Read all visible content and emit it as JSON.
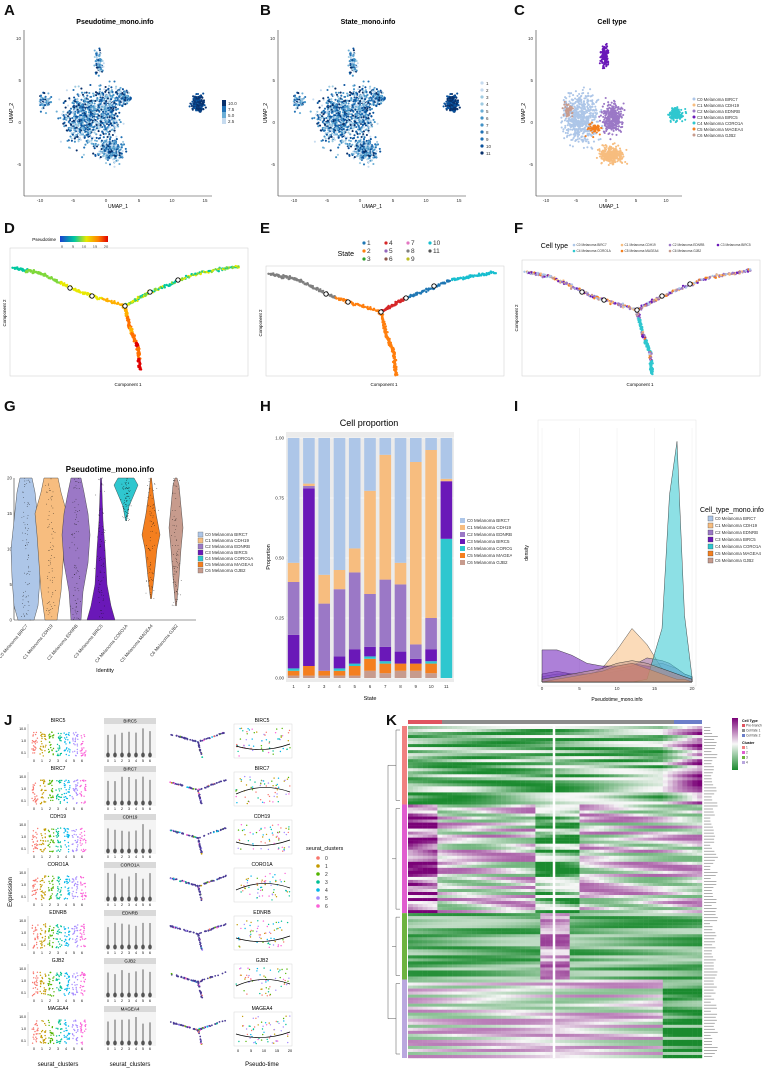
{
  "figure": {
    "panel_letters": [
      "A",
      "B",
      "C",
      "D",
      "E",
      "F",
      "G",
      "H",
      "I",
      "J",
      "K"
    ],
    "panels": {
      "A": {
        "title": "Pseudotime_mono.info",
        "xlabel": "UMAP_1",
        "ylabel": "UMAP_2",
        "xticks": [
          "-10",
          "-5",
          "0",
          "5",
          "10",
          "15"
        ],
        "yticks": [
          "10",
          "5",
          "0",
          "-5"
        ],
        "legend": [
          "10.0",
          "7.5",
          "5.0",
          "2.5"
        ]
      },
      "B": {
        "title": "State_mono.info",
        "xlabel": "UMAP_1",
        "ylabel": "UMAP_2",
        "xticks": [
          "-10",
          "-5",
          "0",
          "5",
          "10",
          "15"
        ],
        "yticks": [
          "10",
          "5",
          "0",
          "-5"
        ],
        "legend": [
          "1",
          "2",
          "3",
          "4",
          "5",
          "6",
          "7",
          "8",
          "9",
          "10",
          "11"
        ]
      },
      "C": {
        "title": "Cell type",
        "xlabel": "UMAP_1",
        "ylabel": "UMAP_2",
        "xticks": [
          "-10",
          "-5",
          "0",
          "5",
          "10"
        ],
        "yticks": [
          "10",
          "5",
          "0",
          "-5"
        ],
        "legend": [
          "C0 Melanoma BIRC7",
          "C1 Melanoma CDH19",
          "C2 Melanoma EDNRB",
          "C3 Melanoma BIRC5",
          "C4 Melanoma CORO1A",
          "C5 Melanoma MAGEA4",
          "C6 Melanoma GJB2"
        ]
      },
      "D": {
        "legend_title": "Pseudotime",
        "legend_ticks": [
          "0",
          "5",
          "10",
          "15",
          "20"
        ],
        "xlabel": "Component 1",
        "ylabel": "Component 2"
      },
      "E": {
        "legend_title": "State",
        "legend": [
          "1",
          "2",
          "3",
          "4",
          "5",
          "6",
          "7",
          "8",
          "9",
          "10",
          "11"
        ],
        "xlabel": "Component 1",
        "ylabel": "Component 2"
      },
      "F": {
        "legend_title": "Cell type",
        "legend": [
          "C0 Melanoma BIRC7",
          "C1 Melanoma CDH19",
          "C2 Melanoma EDNRB",
          "C3 Melanoma BIRC5",
          "C4 Melanoma CORO1A",
          "C5 Melanoma MAGEA4",
          "C6 Melanoma GJB2"
        ],
        "xlabel": "Component 1",
        "ylabel": "Component 2"
      },
      "G": {
        "title": "Pseudotime_mono.info",
        "xlabel": "Identity",
        "yticks": [
          "0",
          "5",
          "10",
          "15",
          "20"
        ],
        "legend": [
          "C0 Melanoma BIRC7",
          "C1 Melanoma CDH19",
          "C2 Melanoma EDNRB",
          "C3 Melanoma BIRC5",
          "C4 Melanoma CORO1A",
          "C5 Melanoma MAGEA4",
          "C6 Melanoma GJB2"
        ]
      },
      "H": {
        "title": "Cell proportion",
        "xlabel": "State",
        "ylabel": "Proportion",
        "yticks": [
          "0.00",
          "0.25",
          "0.50",
          "0.75",
          "1.00"
        ],
        "legend": [
          "C0 Melanoma BIRC7",
          "C1 Melanoma CDH19",
          "C2 Melanoma EDNRB",
          "C3 Melanoma BIRC5",
          "C4 Melanoma CORO1A",
          "C5 Melanoma MAGEA4",
          "C6 Melanoma GJB2"
        ]
      },
      "I": {
        "xlabel": "Pseudotime_mono.info",
        "ylabel": "density",
        "legend_title": "Cell_type_mono.info",
        "xticks": [
          "0",
          "5",
          "10",
          "15",
          "20"
        ],
        "legend": [
          "C0 Melanoma BIRC7",
          "C1 Melanoma CDH19",
          "C2 Melanoma EDNRB",
          "C3 Melanoma BIRC5",
          "C4 Melanoma CORO1A",
          "C5 Melanoma MAGEA4",
          "C6 Melanoma GJB2"
        ]
      },
      "J": {
        "genes": [
          "BIRC5",
          "BIRC7",
          "CDH19",
          "CORO1A",
          "EDNRB",
          "GJB2",
          "MAGEA4"
        ],
        "ylabel": "Expression",
        "xlabel_1": "seurat_clusters",
        "xlabel_2": "seurat_clusters",
        "xlabel_4": "Pseudo-time",
        "legend_title": "seurat_clusters",
        "legend": [
          "0",
          "1",
          "2",
          "3",
          "4",
          "5",
          "6"
        ],
        "xticks_clusters": [
          "0",
          "1",
          "2",
          "3",
          "4",
          "5",
          "6"
        ],
        "xticks_time": [
          "0",
          "5",
          "10",
          "15",
          "20"
        ],
        "yticks": [
          "10.0",
          "1.0",
          "0.1"
        ]
      },
      "K": {
        "legend_title": "Cell Type",
        "legend": [
          "Pre-branch",
          "Cell fate 1",
          "Cell fate 2"
        ],
        "cluster_title": "Cluster",
        "clusters": [
          "1",
          "2",
          "3",
          "4"
        ]
      }
    },
    "colors": {
      "celltype": [
        "#adc6e8",
        "#f7bd7f",
        "#9b78c6",
        "#6a18b8",
        "#2fc7cf",
        "#f47f1f",
        "#c79b8d"
      ],
      "celltype_dark": [
        "#6f91c4",
        "#d9914a",
        "#6d4ba0",
        "#4a0a8a",
        "#1aa0a8",
        "#c05d0c",
        "#9c6f62"
      ],
      "state": [
        "#1f77b4",
        "#ff7f0e",
        "#2ca02c",
        "#d62728",
        "#9467bd",
        "#8c564b",
        "#e377c2",
        "#7f7f7f",
        "#bcbd22",
        "#17becf",
        "#555555"
      ],
      "clusters": [
        "#f8766d",
        "#c49a00",
        "#53b400",
        "#00c094",
        "#00b6eb",
        "#a58aff",
        "#fb61d7"
      ],
      "K_clusters": [
        "#f08080",
        "#e05ccf",
        "#6db33f",
        "#b9a7de"
      ],
      "K_branch": [
        "#e05460",
        "#8c8c8c",
        "#6b7ec9"
      ]
    },
    "chart_data": [
      {
        "panel": "H",
        "type": "bar",
        "title": "Cell proportion",
        "xlabel": "State",
        "ylabel": "Proportion",
        "ylim": [
          0,
          1
        ],
        "categories": [
          "1",
          "2",
          "3",
          "4",
          "5",
          "6",
          "7",
          "8",
          "9",
          "10",
          "11"
        ],
        "series": [
          {
            "name": "C6 Melanoma GJB2",
            "values": [
              0.01,
              0.01,
              0.01,
              0.01,
              0.01,
              0.03,
              0.02,
              0.03,
              0.03,
              0.02,
              0.0
            ]
          },
          {
            "name": "C5 Melanoma MAGEA4",
            "values": [
              0.02,
              0.04,
              0.02,
              0.02,
              0.04,
              0.05,
              0.04,
              0.03,
              0.03,
              0.04,
              0.0
            ]
          },
          {
            "name": "C4 Melanoma CORO1A",
            "values": [
              0.01,
              0.0,
              0.0,
              0.01,
              0.01,
              0.01,
              0.01,
              0.0,
              0.0,
              0.01,
              0.58
            ]
          },
          {
            "name": "C3 Melanoma BIRC5",
            "values": [
              0.14,
              0.74,
              0.0,
              0.05,
              0.06,
              0.04,
              0.06,
              0.05,
              0.02,
              0.05,
              0.24
            ]
          },
          {
            "name": "C2 Melanoma EDNRB",
            "values": [
              0.22,
              0.01,
              0.28,
              0.28,
              0.32,
              0.22,
              0.28,
              0.28,
              0.06,
              0.13,
              0.0
            ]
          },
          {
            "name": "C1 Melanoma CDH19",
            "values": [
              0.08,
              0.01,
              0.12,
              0.08,
              0.1,
              0.43,
              0.52,
              0.09,
              0.76,
              0.7,
              0.01
            ]
          },
          {
            "name": "C0 Melanoma BIRC7",
            "values": [
              0.52,
              0.19,
              0.57,
              0.55,
              0.46,
              0.22,
              0.07,
              0.52,
              0.1,
              0.05,
              0.17
            ]
          }
        ]
      },
      {
        "panel": "I",
        "type": "area",
        "xlabel": "Pseudotime_mono.info",
        "ylabel": "density",
        "xlim": [
          0,
          20
        ],
        "x": [
          0,
          2,
          4,
          6,
          8,
          10,
          12,
          14,
          16,
          17,
          18,
          19,
          20
        ],
        "series": [
          {
            "name": "C0 Melanoma BIRC7",
            "values": [
              0.02,
              0.03,
              0.03,
              0.03,
              0.03,
              0.04,
              0.05,
              0.06,
              0.07,
              0.06,
              0.05,
              0.03,
              0.02
            ]
          },
          {
            "name": "C1 Melanoma CDH19",
            "values": [
              0.0,
              0.0,
              0.01,
              0.02,
              0.05,
              0.12,
              0.2,
              0.14,
              0.05,
              0.03,
              0.02,
              0.01,
              0.0
            ]
          },
          {
            "name": "C2 Melanoma EDNRB",
            "values": [
              0.03,
              0.04,
              0.03,
              0.03,
              0.04,
              0.05,
              0.06,
              0.09,
              0.08,
              0.07,
              0.05,
              0.03,
              0.02
            ]
          },
          {
            "name": "C3 Melanoma BIRC5",
            "values": [
              0.12,
              0.12,
              0.1,
              0.07,
              0.06,
              0.06,
              0.07,
              0.06,
              0.05,
              0.04,
              0.03,
              0.02,
              0.01
            ]
          },
          {
            "name": "C4 Melanoma CORO1A",
            "values": [
              0.0,
              0.0,
              0.0,
              0.0,
              0.0,
              0.0,
              0.0,
              0.01,
              0.2,
              0.7,
              0.9,
              0.25,
              0.02
            ]
          },
          {
            "name": "C5 Melanoma MAGEA4",
            "values": [
              0.0,
              0.01,
              0.02,
              0.03,
              0.04,
              0.06,
              0.07,
              0.05,
              0.03,
              0.02,
              0.01,
              0.01,
              0.0
            ]
          },
          {
            "name": "C6 Melanoma GJB2",
            "values": [
              0.01,
              0.02,
              0.03,
              0.04,
              0.05,
              0.07,
              0.08,
              0.07,
              0.05,
              0.04,
              0.03,
              0.02,
              0.01
            ]
          }
        ]
      }
    ]
  }
}
